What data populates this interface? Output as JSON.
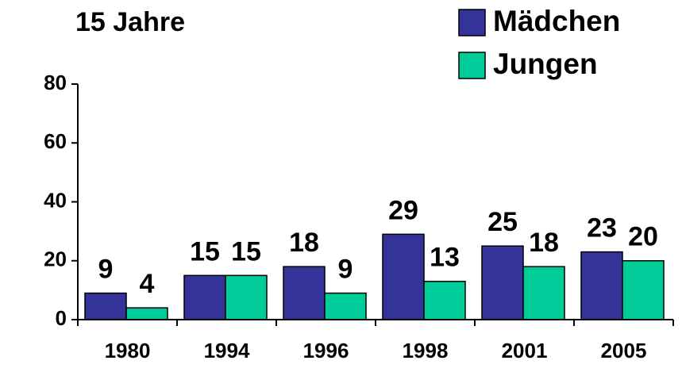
{
  "chart_data": {
    "type": "bar",
    "title": "15 Jahre",
    "categories": [
      "1980",
      "1994",
      "1996",
      "1998",
      "2001",
      "2005"
    ],
    "series": [
      {
        "name": "Mädchen",
        "color": "#333399",
        "values": [
          9,
          15,
          18,
          29,
          25,
          23
        ]
      },
      {
        "name": "Jungen",
        "color": "#00cc99",
        "values": [
          4,
          15,
          9,
          13,
          18,
          20
        ]
      }
    ],
    "ylim": [
      0,
      80
    ],
    "yticks": [
      0,
      20,
      40,
      60,
      80
    ],
    "grid": false,
    "legend": "upper right"
  }
}
